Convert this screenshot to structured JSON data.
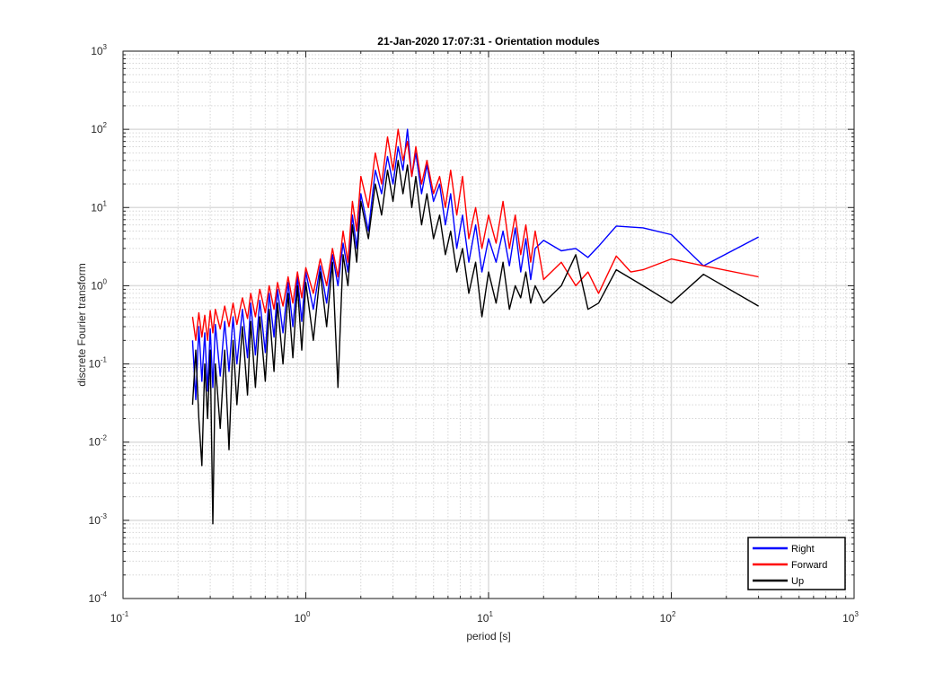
{
  "chart_data": {
    "type": "line",
    "title": "21-Jan-2020 17:07:31 - Orientation modules",
    "xlabel": "period [s]",
    "ylabel": "discrete Fourier transform",
    "xscale": "log",
    "yscale": "log",
    "xlim": [
      0.1,
      1000
    ],
    "ylim": [
      0.0001,
      1000
    ],
    "grid": true,
    "minor_grid": true,
    "legend_position": "bottom-right",
    "x_ticks": [
      {
        "base": "10",
        "exp": "-1",
        "value": 0.1
      },
      {
        "base": "10",
        "exp": "0",
        "value": 1
      },
      {
        "base": "10",
        "exp": "1",
        "value": 10
      },
      {
        "base": "10",
        "exp": "2",
        "value": 100
      },
      {
        "base": "10",
        "exp": "3",
        "value": 1000
      }
    ],
    "y_ticks": [
      {
        "base": "10",
        "exp": "-4",
        "value": 0.0001
      },
      {
        "base": "10",
        "exp": "-3",
        "value": 0.001
      },
      {
        "base": "10",
        "exp": "-2",
        "value": 0.01
      },
      {
        "base": "10",
        "exp": "-1",
        "value": 0.1
      },
      {
        "base": "10",
        "exp": "0",
        "value": 1
      },
      {
        "base": "10",
        "exp": "1",
        "value": 10
      },
      {
        "base": "10",
        "exp": "2",
        "value": 100
      },
      {
        "base": "10",
        "exp": "3",
        "value": 1000
      }
    ],
    "series": [
      {
        "name": "Right",
        "color": "#0000ff",
        "points": [
          [
            0.24,
            0.2
          ],
          [
            0.25,
            0.035
          ],
          [
            0.26,
            0.3
          ],
          [
            0.27,
            0.06
          ],
          [
            0.28,
            0.25
          ],
          [
            0.29,
            0.045
          ],
          [
            0.3,
            0.28
          ],
          [
            0.31,
            0.05
          ],
          [
            0.32,
            0.32
          ],
          [
            0.34,
            0.07
          ],
          [
            0.36,
            0.35
          ],
          [
            0.38,
            0.08
          ],
          [
            0.4,
            0.4
          ],
          [
            0.42,
            0.1
          ],
          [
            0.45,
            0.5
          ],
          [
            0.48,
            0.12
          ],
          [
            0.5,
            0.6
          ],
          [
            0.53,
            0.13
          ],
          [
            0.56,
            0.65
          ],
          [
            0.6,
            0.14
          ],
          [
            0.63,
            0.8
          ],
          [
            0.67,
            0.22
          ],
          [
            0.7,
            0.9
          ],
          [
            0.75,
            0.25
          ],
          [
            0.8,
            1.1
          ],
          [
            0.85,
            0.3
          ],
          [
            0.9,
            1.3
          ],
          [
            0.95,
            0.35
          ],
          [
            1.0,
            1.5
          ],
          [
            1.1,
            0.5
          ],
          [
            1.2,
            1.8
          ],
          [
            1.3,
            0.6
          ],
          [
            1.4,
            2.5
          ],
          [
            1.5,
            1.0
          ],
          [
            1.6,
            3.5
          ],
          [
            1.7,
            1.5
          ],
          [
            1.8,
            8.0
          ],
          [
            1.9,
            3.0
          ],
          [
            2.0,
            15.0
          ],
          [
            2.2,
            5.0
          ],
          [
            2.4,
            30.0
          ],
          [
            2.6,
            15.0
          ],
          [
            2.8,
            45.0
          ],
          [
            3.0,
            20.0
          ],
          [
            3.2,
            60.0
          ],
          [
            3.4,
            30.0
          ],
          [
            3.6,
            100.0
          ],
          [
            3.8,
            25.0
          ],
          [
            4.0,
            50.0
          ],
          [
            4.3,
            15.0
          ],
          [
            4.6,
            35.0
          ],
          [
            5.0,
            12.0
          ],
          [
            5.4,
            20.0
          ],
          [
            5.8,
            6.0
          ],
          [
            6.2,
            15.0
          ],
          [
            6.7,
            3.0
          ],
          [
            7.2,
            8.0
          ],
          [
            7.8,
            2.0
          ],
          [
            8.5,
            6.0
          ],
          [
            9.2,
            1.5
          ],
          [
            10,
            4.0
          ],
          [
            11,
            2.0
          ],
          [
            12,
            5.0
          ],
          [
            13,
            1.8
          ],
          [
            14,
            5.5
          ],
          [
            15,
            1.5
          ],
          [
            16,
            4.0
          ],
          [
            17,
            1.2
          ],
          [
            18,
            3.0
          ],
          [
            20,
            3.8
          ],
          [
            25,
            2.8
          ],
          [
            30,
            3.0
          ],
          [
            35,
            2.3
          ],
          [
            40,
            3.2
          ],
          [
            50,
            5.8
          ],
          [
            70,
            5.5
          ],
          [
            100,
            4.5
          ],
          [
            150,
            1.8
          ],
          [
            300,
            4.2
          ]
        ]
      },
      {
        "name": "Forward",
        "color": "#ff0000",
        "points": [
          [
            0.24,
            0.4
          ],
          [
            0.25,
            0.2
          ],
          [
            0.26,
            0.45
          ],
          [
            0.27,
            0.22
          ],
          [
            0.28,
            0.42
          ],
          [
            0.29,
            0.2
          ],
          [
            0.3,
            0.48
          ],
          [
            0.31,
            0.25
          ],
          [
            0.32,
            0.5
          ],
          [
            0.34,
            0.28
          ],
          [
            0.36,
            0.55
          ],
          [
            0.38,
            0.3
          ],
          [
            0.4,
            0.6
          ],
          [
            0.42,
            0.32
          ],
          [
            0.45,
            0.7
          ],
          [
            0.48,
            0.38
          ],
          [
            0.5,
            0.8
          ],
          [
            0.53,
            0.4
          ],
          [
            0.56,
            0.9
          ],
          [
            0.6,
            0.45
          ],
          [
            0.63,
            1.0
          ],
          [
            0.67,
            0.5
          ],
          [
            0.7,
            1.1
          ],
          [
            0.75,
            0.55
          ],
          [
            0.8,
            1.3
          ],
          [
            0.85,
            0.6
          ],
          [
            0.9,
            1.5
          ],
          [
            0.95,
            0.7
          ],
          [
            1.0,
            1.7
          ],
          [
            1.1,
            0.8
          ],
          [
            1.2,
            2.2
          ],
          [
            1.3,
            1.0
          ],
          [
            1.4,
            3.0
          ],
          [
            1.5,
            1.3
          ],
          [
            1.6,
            5.0
          ],
          [
            1.7,
            2.0
          ],
          [
            1.8,
            12.0
          ],
          [
            1.9,
            5.0
          ],
          [
            2.0,
            25.0
          ],
          [
            2.2,
            10.0
          ],
          [
            2.4,
            50.0
          ],
          [
            2.6,
            20.0
          ],
          [
            2.8,
            80.0
          ],
          [
            3.0,
            30.0
          ],
          [
            3.2,
            100.0
          ],
          [
            3.4,
            40.0
          ],
          [
            3.6,
            70.0
          ],
          [
            3.8,
            25.0
          ],
          [
            4.0,
            60.0
          ],
          [
            4.3,
            20.0
          ],
          [
            4.6,
            40.0
          ],
          [
            5.0,
            15.0
          ],
          [
            5.4,
            25.0
          ],
          [
            5.8,
            10.0
          ],
          [
            6.2,
            30.0
          ],
          [
            6.7,
            8.0
          ],
          [
            7.2,
            25.0
          ],
          [
            7.8,
            4.0
          ],
          [
            8.5,
            10.0
          ],
          [
            9.2,
            3.0
          ],
          [
            10,
            8.0
          ],
          [
            11,
            3.5
          ],
          [
            12,
            12.0
          ],
          [
            13,
            3.0
          ],
          [
            14,
            8.0
          ],
          [
            15,
            2.5
          ],
          [
            16,
            6.0
          ],
          [
            17,
            2.0
          ],
          [
            18,
            5.0
          ],
          [
            20,
            1.2
          ],
          [
            25,
            2.0
          ],
          [
            30,
            1.0
          ],
          [
            35,
            1.5
          ],
          [
            40,
            0.8
          ],
          [
            50,
            2.4
          ],
          [
            60,
            1.5
          ],
          [
            70,
            1.6
          ],
          [
            100,
            2.2
          ],
          [
            150,
            1.8
          ],
          [
            300,
            1.3
          ]
        ]
      },
      {
        "name": "Up",
        "color": "#000000",
        "points": [
          [
            0.24,
            0.03
          ],
          [
            0.25,
            0.15
          ],
          [
            0.26,
            0.02
          ],
          [
            0.27,
            0.005
          ],
          [
            0.28,
            0.1
          ],
          [
            0.29,
            0.02
          ],
          [
            0.3,
            0.15
          ],
          [
            0.31,
            0.0009
          ],
          [
            0.32,
            0.1
          ],
          [
            0.34,
            0.015
          ],
          [
            0.36,
            0.15
          ],
          [
            0.38,
            0.008
          ],
          [
            0.4,
            0.2
          ],
          [
            0.42,
            0.03
          ],
          [
            0.45,
            0.3
          ],
          [
            0.48,
            0.04
          ],
          [
            0.5,
            0.35
          ],
          [
            0.53,
            0.05
          ],
          [
            0.56,
            0.4
          ],
          [
            0.6,
            0.06
          ],
          [
            0.63,
            0.5
          ],
          [
            0.67,
            0.08
          ],
          [
            0.7,
            0.6
          ],
          [
            0.75,
            0.1
          ],
          [
            0.8,
            0.8
          ],
          [
            0.85,
            0.12
          ],
          [
            0.9,
            1.0
          ],
          [
            0.95,
            0.15
          ],
          [
            1.0,
            1.1
          ],
          [
            1.1,
            0.2
          ],
          [
            1.2,
            1.5
          ],
          [
            1.3,
            0.3
          ],
          [
            1.4,
            2.0
          ],
          [
            1.5,
            0.05
          ],
          [
            1.6,
            2.5
          ],
          [
            1.7,
            1.0
          ],
          [
            1.8,
            6.0
          ],
          [
            1.9,
            2.0
          ],
          [
            2.0,
            12.0
          ],
          [
            2.2,
            4.0
          ],
          [
            2.4,
            20.0
          ],
          [
            2.6,
            8.0
          ],
          [
            2.8,
            30.0
          ],
          [
            3.0,
            12.0
          ],
          [
            3.2,
            40.0
          ],
          [
            3.4,
            15.0
          ],
          [
            3.6,
            35.0
          ],
          [
            3.8,
            10.0
          ],
          [
            4.0,
            25.0
          ],
          [
            4.3,
            6.0
          ],
          [
            4.6,
            15.0
          ],
          [
            5.0,
            4.0
          ],
          [
            5.4,
            8.0
          ],
          [
            5.8,
            2.5
          ],
          [
            6.2,
            5.0
          ],
          [
            6.7,
            1.5
          ],
          [
            7.2,
            3.0
          ],
          [
            7.8,
            0.8
          ],
          [
            8.5,
            2.0
          ],
          [
            9.2,
            0.4
          ],
          [
            10,
            1.5
          ],
          [
            11,
            0.6
          ],
          [
            12,
            2.0
          ],
          [
            13,
            0.5
          ],
          [
            14,
            1.0
          ],
          [
            15,
            0.7
          ],
          [
            16,
            1.5
          ],
          [
            17,
            0.6
          ],
          [
            18,
            1.0
          ],
          [
            20,
            0.6
          ],
          [
            25,
            1.0
          ],
          [
            30,
            2.5
          ],
          [
            35,
            0.5
          ],
          [
            40,
            0.6
          ],
          [
            50,
            1.6
          ],
          [
            70,
            1.0
          ],
          [
            100,
            0.6
          ],
          [
            150,
            1.4
          ],
          [
            300,
            0.55
          ]
        ]
      }
    ]
  }
}
